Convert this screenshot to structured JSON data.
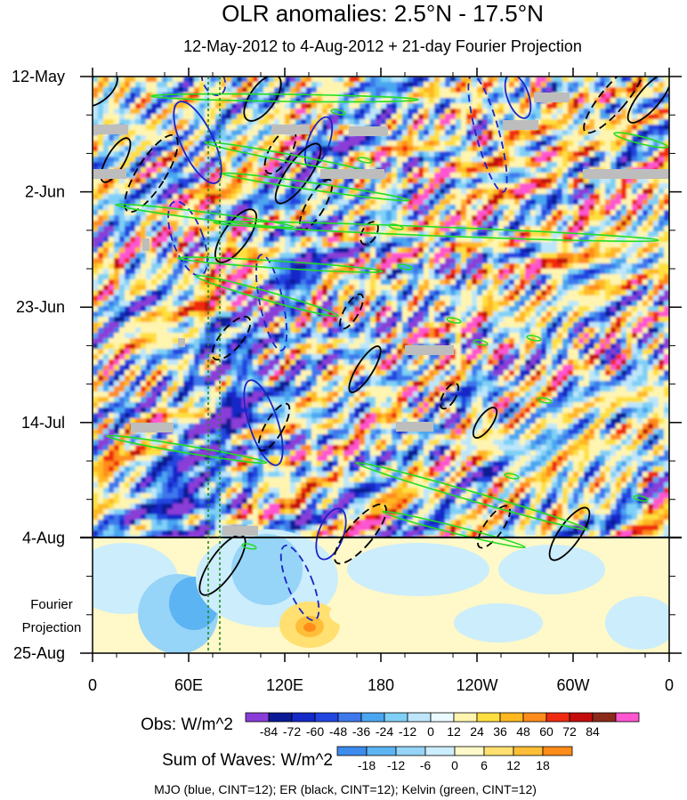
{
  "chart_data": {
    "type": "heatmap",
    "title": "OLR anomalies: 2.5°N - 17.5°N",
    "subtitle": "12-May-2012 to 4-Aug-2012 + 21-day Fourier Projection",
    "x_ticks": [
      "0",
      "60E",
      "120E",
      "180",
      "120W",
      "60W",
      "0"
    ],
    "x_tick_values": [
      0,
      60,
      120,
      180,
      240,
      300,
      360
    ],
    "y_ticks": [
      "12-May",
      "2-Jun",
      "23-Jun",
      "14-Jul",
      "4-Aug",
      "25-Aug"
    ],
    "projection_label_line1": "Fourier",
    "projection_label_line2": "Projection",
    "projection_start": "4-Aug",
    "obs_colorbar": {
      "label": "Obs: W/m^2",
      "ticks": [
        "-84",
        "-72",
        "-60",
        "-48",
        "-36",
        "-24",
        "-12",
        "0",
        "12",
        "24",
        "36",
        "48",
        "60",
        "72",
        "84"
      ],
      "colors": [
        "#8b3cd8",
        "#0b1a96",
        "#1528c8",
        "#2145e0",
        "#3d78ec",
        "#4aa6f0",
        "#7fd0f6",
        "#bde6fa",
        "#ebfbff",
        "#fff5b0",
        "#ffdf40",
        "#ffb820",
        "#ff8c1a",
        "#f02a10",
        "#c40c0c",
        "#8c2a1a",
        "#ff55d0"
      ]
    },
    "waves_colorbar": {
      "label": "Sum of Waves: W/m^2",
      "ticks": [
        "-18",
        "-12",
        "-6",
        "0",
        "6",
        "12",
        "18"
      ],
      "colors": [
        "#3d8cec",
        "#5cb4f2",
        "#96d4f8",
        "#ccedfb",
        "#fff8c8",
        "#ffe070",
        "#ffbe38",
        "#ff8c1a"
      ]
    },
    "footnote": "MJO (blue, CINT=12); ER (black, CINT=12); Kelvin (green, CINT=12)",
    "series": [
      {
        "name": "MJO",
        "color": "#1a24c8"
      },
      {
        "name": "ER",
        "color": "#000000"
      },
      {
        "name": "Kelvin",
        "color": "#22dd22"
      }
    ]
  }
}
